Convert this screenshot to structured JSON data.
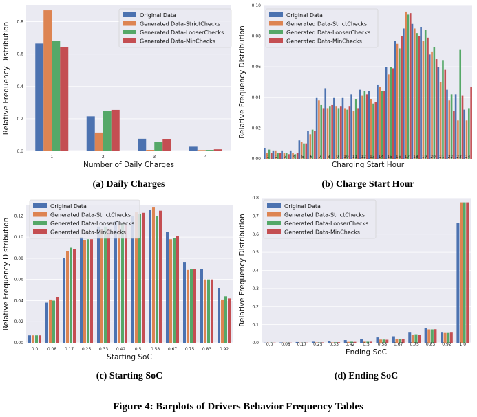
{
  "figure_caption": "Figure 4: Barplots of Drivers Behavior Frequency Tables",
  "legend_labels": [
    "Original Data",
    "Generated Data-StrictChecks",
    "Generated Data-LooserChecks",
    "Generated Data-MinChecks"
  ],
  "series_colors": [
    "#4c72b0",
    "#dd8452",
    "#55a868",
    "#c44e52"
  ],
  "plot_background": "#eaeaf2",
  "chart_data": [
    {
      "type": "bar",
      "caption": "(a) Daily Charges",
      "xlabel": "Number of Daily Charges",
      "ylabel": "Relative Frequency Distribution",
      "categories": [
        "1",
        "2",
        "3",
        "4"
      ],
      "ylim": [
        0,
        0.9
      ],
      "yticks": [
        "0.0",
        "0.2",
        "0.4",
        "0.6",
        "0.8"
      ],
      "legend_position": "top-right",
      "grid": true,
      "series": [
        {
          "name": "Original Data",
          "values": [
            0.665,
            0.215,
            0.077,
            0.028
          ]
        },
        {
          "name": "Generated Data-StrictChecks",
          "values": [
            0.87,
            0.115,
            0.008,
            0.003
          ]
        },
        {
          "name": "Generated Data-LooserChecks",
          "values": [
            0.68,
            0.25,
            0.058,
            0.004
          ]
        },
        {
          "name": "Generated Data-MinChecks",
          "values": [
            0.645,
            0.255,
            0.075,
            0.012
          ]
        }
      ]
    },
    {
      "type": "bar",
      "caption": "(b) Charge Start Hour",
      "xlabel": "Charging Start Hour",
      "ylabel": "Relative Frequency Distribution",
      "categories": [
        "1",
        "2",
        "3",
        "4",
        "5",
        "6",
        "7",
        "8",
        "9",
        "10",
        "11",
        "12",
        "13",
        "14",
        "15",
        "16",
        "17",
        "18",
        "19",
        "20",
        "21",
        "22",
        "23",
        "24"
      ],
      "ylim": [
        0,
        0.1
      ],
      "yticks": [
        "0.00",
        "0.02",
        "0.04",
        "0.06",
        "0.08",
        "0.10"
      ],
      "legend_position": "top-left",
      "grid": true,
      "series": [
        {
          "name": "Original Data",
          "values": [
            0.007,
            0.005,
            0.005,
            0.005,
            0.012,
            0.018,
            0.04,
            0.046,
            0.04,
            0.04,
            0.042,
            0.045,
            0.044,
            0.048,
            0.06,
            0.077,
            0.085,
            0.088,
            0.086,
            0.068,
            0.06,
            0.045,
            0.042,
            0.032
          ]
        },
        {
          "name": "Generated Data-StrictChecks",
          "values": [
            0.004,
            0.005,
            0.004,
            0.004,
            0.011,
            0.016,
            0.038,
            0.033,
            0.034,
            0.033,
            0.031,
            0.041,
            0.039,
            0.047,
            0.055,
            0.075,
            0.096,
            0.085,
            0.077,
            0.07,
            0.05,
            0.038,
            0.025,
            0.025
          ]
        },
        {
          "name": "Generated Data-LooserChecks",
          "values": [
            0.006,
            0.004,
            0.004,
            0.003,
            0.01,
            0.019,
            0.035,
            0.034,
            0.033,
            0.032,
            0.039,
            0.044,
            0.036,
            0.044,
            0.06,
            0.072,
            0.094,
            0.082,
            0.084,
            0.073,
            0.064,
            0.042,
            0.071,
            0.033
          ]
        },
        {
          "name": "Generated Data-MinChecks",
          "values": [
            0.004,
            0.004,
            0.003,
            0.004,
            0.01,
            0.018,
            0.033,
            0.035,
            0.034,
            0.034,
            0.033,
            0.042,
            0.037,
            0.044,
            0.059,
            0.08,
            0.095,
            0.08,
            0.079,
            0.065,
            0.058,
            0.031,
            0.041,
            0.047
          ]
        }
      ]
    },
    {
      "type": "bar",
      "caption": "(c) Starting SoC",
      "xlabel": "Starting SoC",
      "ylabel": "Relative Frequency Distribution",
      "categories": [
        "0.0",
        "0.08",
        "0.17",
        "0.25",
        "0.33",
        "0.42",
        "0.5",
        "0.58",
        "0.67",
        "0.75",
        "0.83",
        "0.92"
      ],
      "ylim": [
        0,
        0.13
      ],
      "yticks": [
        "0.00",
        "0.02",
        "0.04",
        "0.06",
        "0.08",
        "0.10",
        "0.12"
      ],
      "legend_position": "top-left",
      "grid": true,
      "series": [
        {
          "name": "Original Data",
          "values": [
            0.007,
            0.038,
            0.08,
            0.1,
            0.11,
            0.115,
            0.12,
            0.126,
            0.105,
            0.076,
            0.07,
            0.052
          ]
        },
        {
          "name": "Generated Data-StrictChecks",
          "values": [
            0.007,
            0.041,
            0.087,
            0.097,
            0.107,
            0.112,
            0.124,
            0.128,
            0.098,
            0.069,
            0.06,
            0.041
          ]
        },
        {
          "name": "Generated Data-LooserChecks",
          "values": [
            0.007,
            0.04,
            0.09,
            0.098,
            0.11,
            0.113,
            0.122,
            0.12,
            0.099,
            0.07,
            0.06,
            0.044
          ]
        },
        {
          "name": "Generated Data-MinChecks",
          "values": [
            0.007,
            0.043,
            0.089,
            0.098,
            0.108,
            0.112,
            0.123,
            0.125,
            0.101,
            0.07,
            0.06,
            0.042
          ]
        }
      ]
    },
    {
      "type": "bar",
      "caption": "(d) Ending SoC",
      "xlabel": "Ending SoC",
      "ylabel": "Relative Frequency Distribution",
      "categories": [
        "0.0",
        "0.08",
        "0.17",
        "0.25",
        "0.33",
        "0.42",
        "0.5",
        "0.58",
        "0.67",
        "0.75",
        "0.83",
        "0.92",
        "1.0"
      ],
      "ylim": [
        0,
        0.8
      ],
      "yticks": [
        "0.0",
        "0.1",
        "0.2",
        "0.3",
        "0.4",
        "0.5",
        "0.6",
        "0.7",
        "0.8"
      ],
      "legend_position": "top-left",
      "grid": true,
      "series": [
        {
          "name": "Original Data",
          "values": [
            0.001,
            0.002,
            0.004,
            0.006,
            0.01,
            0.015,
            0.022,
            0.03,
            0.036,
            0.06,
            0.082,
            0.06,
            0.66
          ]
        },
        {
          "name": "Generated Data-StrictChecks",
          "values": [
            0.001,
            0.001,
            0.001,
            0.002,
            0.002,
            0.005,
            0.006,
            0.018,
            0.022,
            0.044,
            0.074,
            0.058,
            0.775
          ]
        },
        {
          "name": "Generated Data-LooserChecks",
          "values": [
            0.001,
            0.001,
            0.001,
            0.002,
            0.003,
            0.006,
            0.006,
            0.018,
            0.022,
            0.047,
            0.074,
            0.058,
            0.775
          ]
        },
        {
          "name": "Generated Data-MinChecks",
          "values": [
            0.001,
            0.001,
            0.001,
            0.002,
            0.003,
            0.005,
            0.006,
            0.017,
            0.02,
            0.042,
            0.075,
            0.06,
            0.775
          ]
        }
      ]
    }
  ]
}
